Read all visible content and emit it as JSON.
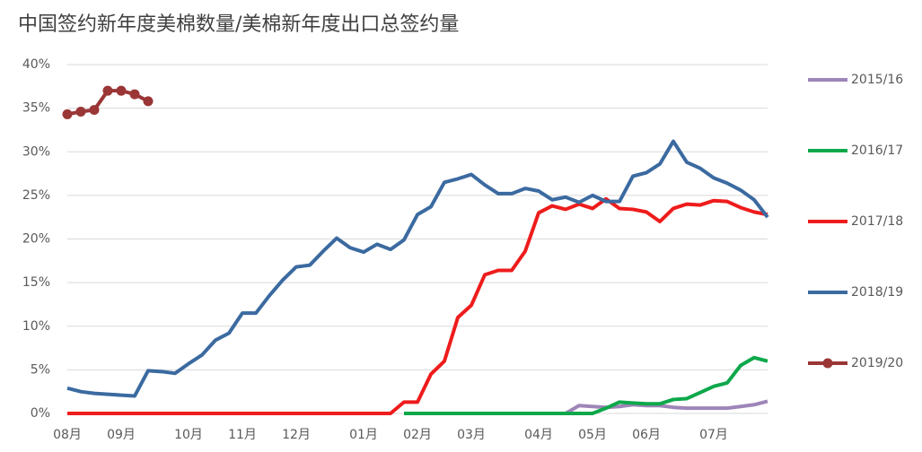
{
  "chart_data": {
    "type": "line",
    "title": "中国签约新年度美棉数量/美棉新年度出口总签约量",
    "categories": [
      "08月",
      null,
      null,
      null,
      "09月",
      null,
      null,
      null,
      null,
      "10月",
      null,
      null,
      null,
      "11月",
      null,
      null,
      null,
      "12月",
      null,
      null,
      null,
      null,
      "01月",
      null,
      null,
      null,
      "02月",
      null,
      null,
      null,
      "03月",
      null,
      null,
      null,
      null,
      "04月",
      null,
      null,
      null,
      "05月",
      null,
      null,
      null,
      "06月",
      null,
      null,
      null,
      null,
      "07月",
      null,
      null,
      null,
      null
    ],
    "ylim": [
      0,
      40
    ],
    "yticks": [
      {
        "value": 0,
        "label": "0%"
      },
      {
        "value": 5,
        "label": "5%"
      },
      {
        "value": 10,
        "label": "10%"
      },
      {
        "value": 15,
        "label": "15%"
      },
      {
        "value": 20,
        "label": "20%"
      },
      {
        "value": 25,
        "label": "25%"
      },
      {
        "value": 30,
        "label": "30%"
      },
      {
        "value": 35,
        "label": "35%"
      },
      {
        "value": 40,
        "label": "40%"
      }
    ],
    "grid": true,
    "legend": "right",
    "series": [
      {
        "name": "2015/16",
        "color": "#9e85b8",
        "markers": false,
        "values": [
          null,
          null,
          null,
          null,
          null,
          null,
          null,
          null,
          null,
          null,
          null,
          null,
          null,
          null,
          null,
          null,
          null,
          null,
          null,
          null,
          null,
          null,
          null,
          null,
          null,
          null,
          null,
          null,
          null,
          null,
          null,
          null,
          null,
          null,
          null,
          null,
          null,
          0,
          0.9,
          0.8,
          0.7,
          0.8,
          1.0,
          0.9,
          0.9,
          0.7,
          0.6,
          0.6,
          0.6,
          0.6,
          0.8,
          1.0,
          1.4
        ]
      },
      {
        "name": "2016/17",
        "color": "#0ea84b",
        "markers": false,
        "values": [
          null,
          null,
          null,
          null,
          null,
          null,
          null,
          null,
          null,
          null,
          null,
          null,
          null,
          null,
          null,
          null,
          null,
          null,
          null,
          null,
          null,
          null,
          null,
          null,
          null,
          0,
          0,
          0,
          0,
          0,
          0,
          0,
          0,
          0,
          0,
          0,
          0,
          0,
          0,
          0,
          0.6,
          1.3,
          1.2,
          1.1,
          1.1,
          1.6,
          1.7,
          2.4,
          3.1,
          3.5,
          5.5,
          6.4,
          6.0
        ]
      },
      {
        "name": "2017/18",
        "color": "#ee1c1c",
        "markers": false,
        "values": [
          0,
          0,
          0,
          0,
          0,
          0,
          0,
          0,
          0,
          0,
          0,
          0,
          0,
          0,
          0,
          0,
          0,
          0,
          0,
          0,
          0,
          0,
          0,
          0,
          0,
          1.3,
          1.3,
          4.5,
          6.0,
          11.0,
          12.4,
          15.9,
          16.4,
          16.4,
          18.6,
          23.0,
          23.8,
          23.4,
          24.0,
          23.5,
          24.6,
          23.5,
          23.4,
          23.1,
          22.0,
          23.5,
          24.0,
          23.9,
          24.4,
          24.3,
          23.6,
          23.1,
          22.8
        ]
      },
      {
        "name": "2018/19",
        "color": "#3b6aa0",
        "markers": false,
        "values": [
          2.9,
          2.5,
          2.3,
          2.2,
          2.1,
          2.0,
          4.9,
          4.8,
          4.6,
          5.7,
          6.7,
          8.4,
          9.2,
          11.5,
          11.5,
          13.5,
          15.3,
          16.8,
          17.0,
          18.6,
          20.1,
          19.0,
          18.5,
          19.4,
          18.8,
          19.9,
          22.8,
          23.7,
          26.5,
          26.9,
          27.4,
          26.2,
          25.2,
          25.2,
          25.8,
          25.5,
          24.5,
          24.8,
          24.2,
          25.0,
          24.3,
          24.3,
          27.2,
          27.6,
          28.6,
          31.2,
          28.8,
          28.1,
          27.0,
          26.4,
          25.6,
          24.5,
          22.5
        ]
      },
      {
        "name": "2019/20",
        "color": "#9b3636",
        "markers": true,
        "values": [
          34.3,
          34.6,
          34.8,
          37.0,
          37.0,
          36.6,
          35.8,
          null,
          null,
          null,
          null,
          null,
          null,
          null,
          null,
          null,
          null,
          null,
          null,
          null,
          null,
          null,
          null,
          null,
          null,
          null,
          null,
          null,
          null,
          null,
          null,
          null,
          null,
          null,
          null,
          null,
          null,
          null,
          null,
          null,
          null,
          null,
          null,
          null,
          null,
          null,
          null,
          null,
          null,
          null,
          null,
          null,
          null
        ]
      }
    ]
  }
}
